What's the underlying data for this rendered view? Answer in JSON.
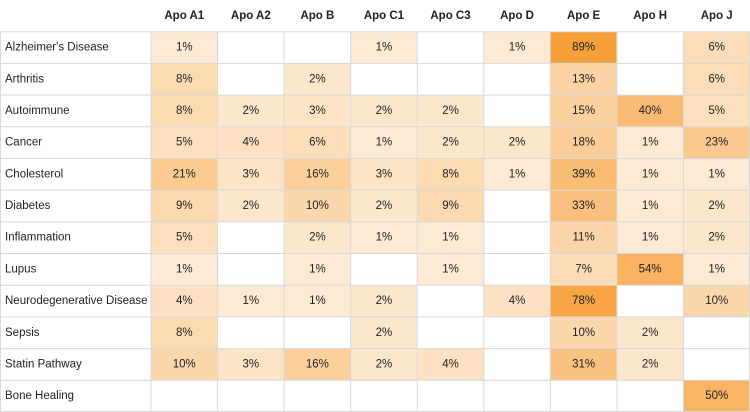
{
  "chart_data": {
    "type": "heatmap",
    "columns": [
      "Apo A1",
      "Apo A2",
      "Apo B",
      "Apo C1",
      "Apo C3",
      "Apo D",
      "Apo E",
      "Apo H",
      "Apo J"
    ],
    "rows": [
      "Alzheimer's Disease",
      "Arthritis",
      "Autoimmune",
      "Cancer",
      "Cholesterol",
      "Diabetes",
      "Inflammation",
      "Lupus",
      "Neurodegenerative Disease",
      "Sepsis",
      "Statin Pathway",
      "Bone Healing"
    ],
    "values": [
      [
        1,
        null,
        null,
        1,
        null,
        1,
        89,
        null,
        6
      ],
      [
        8,
        null,
        2,
        null,
        null,
        null,
        13,
        null,
        6
      ],
      [
        8,
        2,
        3,
        2,
        2,
        null,
        15,
        40,
        5
      ],
      [
        5,
        4,
        6,
        1,
        2,
        2,
        18,
        1,
        23
      ],
      [
        21,
        3,
        16,
        3,
        8,
        1,
        39,
        1,
        1
      ],
      [
        9,
        2,
        10,
        2,
        9,
        null,
        33,
        1,
        2
      ],
      [
        5,
        null,
        2,
        1,
        1,
        null,
        11,
        1,
        2
      ],
      [
        1,
        null,
        1,
        null,
        1,
        null,
        7,
        54,
        1
      ],
      [
        4,
        1,
        1,
        2,
        null,
        4,
        78,
        null,
        10
      ],
      [
        8,
        null,
        null,
        2,
        null,
        null,
        10,
        2,
        null
      ],
      [
        10,
        3,
        16,
        2,
        4,
        null,
        31,
        2,
        null
      ],
      [
        null,
        null,
        null,
        null,
        null,
        null,
        null,
        null,
        50
      ]
    ],
    "value_labels": [
      [
        "1%",
        null,
        null,
        "1%",
        null,
        "1%",
        "89%",
        null,
        "6%"
      ],
      [
        "8%",
        null,
        "2%",
        null,
        null,
        null,
        "13%",
        null,
        "6%"
      ],
      [
        "8%",
        "2%",
        "3%",
        "2%",
        "2%",
        null,
        "15%",
        "40%",
        "5%"
      ],
      [
        "5%",
        "4%",
        "6%",
        "1%",
        "2%",
        "2%",
        "18%",
        "1%",
        "23%"
      ],
      [
        "21%",
        "3%",
        "16%",
        "3%",
        "8%",
        "1%",
        "39%",
        "1%",
        "1%"
      ],
      [
        "9%",
        "2%",
        "10%",
        "2%",
        "9%",
        null,
        "33%",
        "1%",
        "2%"
      ],
      [
        "5%",
        null,
        "2%",
        "1%",
        "1%",
        null,
        "11%",
        "1%",
        "2%"
      ],
      [
        "1%",
        null,
        "1%",
        null,
        "1%",
        null,
        "7%",
        "54%",
        "1%"
      ],
      [
        "4%",
        "1%",
        "1%",
        "2%",
        null,
        "4%",
        "78%",
        null,
        "10%"
      ],
      [
        "8%",
        null,
        null,
        "2%",
        null,
        null,
        "10%",
        "2%",
        null
      ],
      [
        "10%",
        "3%",
        "16%",
        "2%",
        "4%",
        null,
        "31%",
        "2%",
        null
      ],
      [
        null,
        null,
        null,
        null,
        null,
        null,
        null,
        null,
        "50%"
      ]
    ],
    "colors": [
      "#fef3e6",
      "#f7a03a"
    ]
  }
}
